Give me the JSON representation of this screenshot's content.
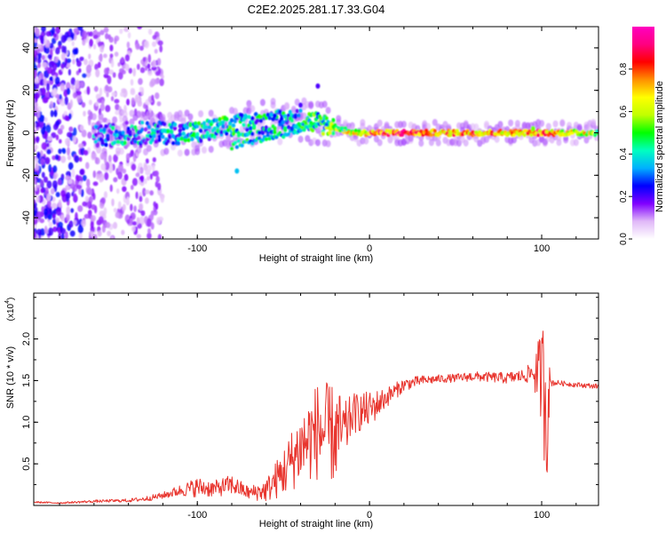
{
  "figure": {
    "title": "C2E2.2025.281.17.33.G04"
  },
  "chart_data": [
    {
      "type": "heatmap",
      "xlabel": "Height of straight line (km)",
      "ylabel": "Frequency (Hz)",
      "xlim": [
        -195,
        133
      ],
      "ylim": [
        -50,
        50
      ],
      "xticks": [
        -100,
        0,
        100
      ],
      "xtick_labels": [
        "-100",
        "0",
        "100"
      ],
      "yticks": [
        -40,
        -20,
        0,
        20,
        40
      ],
      "ytick_labels": [
        "-40",
        "-20",
        "0",
        "20",
        "40"
      ],
      "colorbar": {
        "label": "Normalized spectral amplitude",
        "range": [
          0,
          1
        ],
        "ticks": [
          0.0,
          0.2,
          0.4,
          0.6,
          0.8
        ],
        "tick_labels": [
          "0.0",
          "0.2",
          "0.4",
          "0.6",
          "0.8"
        ],
        "stops": [
          "#ffffff",
          "#e0b8f8",
          "#8000ff",
          "#0000ff",
          "#00b0ff",
          "#00ffc0",
          "#00ff00",
          "#c0ff00",
          "#ffff00",
          "#ff9000",
          "#ff0000",
          "#ff0080",
          "#ff00c0"
        ]
      },
      "ridge": {
        "x": [
          -160,
          -140,
          -120,
          -100,
          -80,
          -60,
          -40,
          -25,
          -10,
          0,
          20,
          40,
          60,
          80,
          100,
          133
        ],
        "freq": [
          -2,
          0,
          0,
          0,
          3,
          5,
          6,
          4,
          0,
          0,
          0,
          0,
          0,
          0,
          0,
          0
        ],
        "amplitude": [
          0.25,
          0.3,
          0.3,
          0.35,
          0.4,
          0.35,
          0.35,
          0.45,
          0.6,
          0.75,
          0.8,
          0.7,
          0.75,
          0.7,
          0.75,
          0.55
        ]
      }
    },
    {
      "type": "line",
      "xlabel": "Height of straight line (km)",
      "ylabel": "SNR (10 * v/v)",
      "y_scale_label": "(x10",
      "y_scale_exponent": "4",
      "y_scale_suffix": ")",
      "xlim": [
        -195,
        133
      ],
      "ylim": [
        0,
        2.55
      ],
      "xticks": [
        -100,
        0,
        100
      ],
      "xtick_labels": [
        "-100",
        "0",
        "100"
      ],
      "yticks": [
        0.5,
        1.0,
        1.5,
        2.0
      ],
      "ytick_labels": [
        "0.5",
        "1.0",
        "1.5",
        "2.0"
      ],
      "color": "#e8352e",
      "series": [
        {
          "name": "SNR",
          "x": [
            -195,
            -180,
            -160,
            -140,
            -130,
            -120,
            -110,
            -100,
            -90,
            -80,
            -70,
            -60,
            -50,
            -40,
            -30,
            -20,
            -14,
            -10,
            0,
            10,
            20,
            30,
            40,
            50,
            60,
            70,
            80,
            90,
            95,
            100,
            103,
            104,
            105,
            110,
            120,
            133
          ],
          "values": [
            0.04,
            0.03,
            0.05,
            0.06,
            0.08,
            0.12,
            0.18,
            0.22,
            0.2,
            0.25,
            0.15,
            0.18,
            0.4,
            0.7,
            0.9,
            0.85,
            0.9,
            1.1,
            1.15,
            1.3,
            1.45,
            1.5,
            1.52,
            1.53,
            1.55,
            1.54,
            1.53,
            1.56,
            1.6,
            1.55,
            1.3,
            1.4,
            1.48,
            1.47,
            1.45,
            1.43
          ],
          "noise": [
            0.01,
            0.01,
            0.015,
            0.02,
            0.03,
            0.04,
            0.07,
            0.12,
            0.1,
            0.12,
            0.08,
            0.14,
            0.3,
            0.45,
            0.6,
            0.6,
            0.35,
            0.25,
            0.22,
            0.12,
            0.08,
            0.06,
            0.05,
            0.05,
            0.06,
            0.06,
            0.07,
            0.08,
            0.15,
            0.6,
            1.2,
            0.5,
            0.05,
            0.03,
            0.03,
            0.03
          ]
        }
      ]
    }
  ]
}
